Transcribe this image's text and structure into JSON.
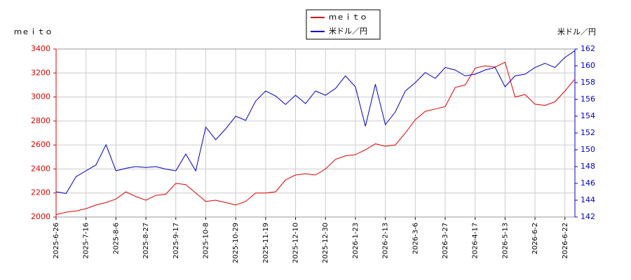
{
  "chart_data": {
    "type": "line",
    "ylabel": "ｍｅｉｔｏ",
    "y2label": "米ドル／円",
    "categories": [
      "2025-6-26",
      null,
      null,
      "2025-7-16",
      null,
      null,
      "2025-8-6",
      null,
      null,
      "2025-8-27",
      null,
      null,
      "2025-9-17",
      null,
      null,
      "2025-10-8",
      null,
      null,
      "2025-10-29",
      null,
      null,
      "2025-11-19",
      null,
      null,
      "2025-12-10",
      null,
      null,
      "2025-12-30",
      null,
      null,
      "2026-1-23",
      null,
      null,
      "2026-2-13",
      null,
      null,
      "2026-3-6",
      null,
      null,
      "2026-3-27",
      null,
      null,
      "2026-4-17",
      null,
      null,
      "2026-5-13",
      null,
      null,
      "2026-6-2",
      null,
      null,
      "2026-6-22",
      null
    ],
    "series": [
      {
        "name": "ｍｅｉｔｏ",
        "color": "#e00000",
        "axis": "y",
        "values": [
          2020,
          2040,
          2050,
          2070,
          2100,
          2120,
          2150,
          2210,
          2170,
          2140,
          2180,
          2190,
          2280,
          2270,
          2200,
          2130,
          2140,
          2120,
          2100,
          2130,
          2200,
          2200,
          2210,
          2310,
          2350,
          2360,
          2350,
          2400,
          2480,
          2510,
          2520,
          2560,
          2610,
          2590,
          2600,
          2700,
          2810,
          2880,
          2900,
          2920,
          3080,
          3100,
          3240,
          3260,
          3250,
          3290,
          3000,
          3020,
          2940,
          2930,
          2960,
          3050,
          3150
        ]
      },
      {
        "name": "米ドル／円",
        "color": "#0000cc",
        "axis": "y2",
        "values": [
          145.0,
          144.8,
          146.8,
          147.5,
          148.2,
          150.6,
          147.5,
          147.8,
          148.0,
          147.9,
          148.0,
          147.7,
          147.5,
          149.5,
          147.5,
          152.7,
          151.2,
          152.5,
          154.0,
          153.5,
          155.8,
          157.0,
          156.4,
          155.4,
          156.5,
          155.5,
          157.0,
          156.5,
          157.3,
          158.8,
          157.5,
          152.8,
          157.8,
          153.0,
          154.5,
          157.0,
          158.0,
          159.2,
          158.5,
          159.8,
          159.5,
          158.8,
          159.0,
          159.5,
          159.8,
          157.5,
          158.8,
          159.0,
          159.8,
          160.3,
          159.8,
          161.0,
          161.8
        ]
      }
    ],
    "ylim": [
      2000,
      3400
    ],
    "yticks": [
      2000,
      2200,
      2400,
      2600,
      2800,
      3000,
      3200,
      3400
    ],
    "y2lim": [
      142,
      162
    ],
    "y2ticks": [
      142,
      144,
      146,
      148,
      150,
      152,
      154,
      156,
      158,
      160,
      162
    ],
    "grid": true,
    "legend": "top"
  }
}
